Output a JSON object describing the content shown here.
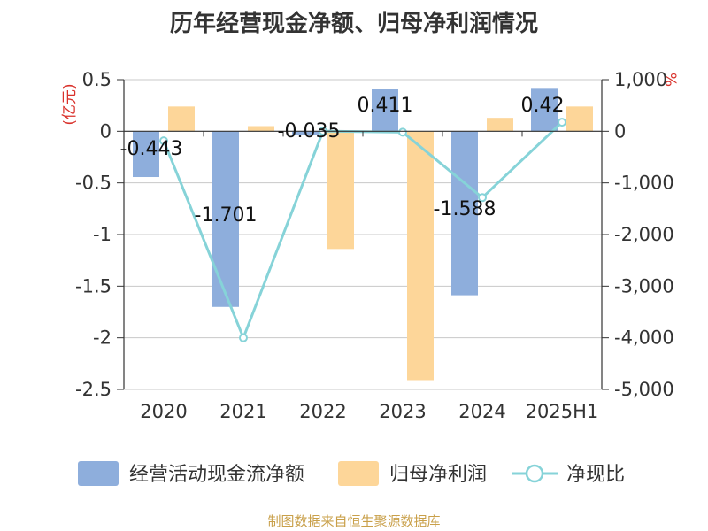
{
  "chart_data": {
    "type": "bar",
    "title": "历年经营现金净额、归母净利润情况",
    "categories": [
      "2020",
      "2021",
      "2022",
      "2023",
      "2024",
      "2025H1"
    ],
    "left_axis": {
      "unit": "(亿元)",
      "ylim": [
        -2.5,
        0.5
      ],
      "ticks": [
        0.5,
        0,
        -0.5,
        -1,
        -1.5,
        -2,
        -2.5
      ],
      "tick_labels": [
        "0.5",
        "0",
        "-0.5",
        "-1",
        "-1.5",
        "-2",
        "-2.5"
      ]
    },
    "right_axis": {
      "unit": "%",
      "ylim": [
        -5000,
        1000
      ],
      "ticks": [
        1000,
        0,
        -1000,
        -2000,
        -3000,
        -4000,
        -5000
      ],
      "tick_labels": [
        "1,000",
        "0",
        "-1,000",
        "-2,000",
        "-3,000",
        "-4,000",
        "-5,000"
      ]
    },
    "series": [
      {
        "name": "经营活动现金流净额",
        "type": "bar",
        "axis": "left",
        "color": "#8eaedc",
        "values": [
          -0.443,
          -1.701,
          -0.035,
          0.411,
          -1.588,
          0.42
        ],
        "labels": [
          "-0.443",
          "-1.701",
          "-0.035",
          "0.411",
          "-1.588",
          "0.42"
        ]
      },
      {
        "name": "归母净利润",
        "type": "bar",
        "axis": "left",
        "color": "#fdd699",
        "values": [
          0.24,
          0.05,
          -1.14,
          -2.41,
          0.13,
          0.24
        ]
      },
      {
        "name": "净现比",
        "type": "line",
        "axis": "right",
        "color": "#86d3d8",
        "values": [
          -185,
          -4000,
          3,
          -18,
          -1285,
          175
        ]
      }
    ],
    "grid": true,
    "legend_position": "bottom"
  },
  "footer": {
    "source": "制图数据来自恒生聚源数据库"
  }
}
